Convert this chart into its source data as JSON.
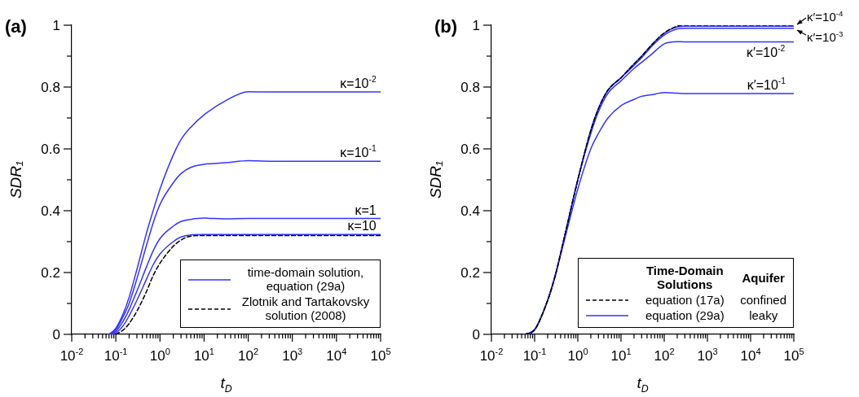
{
  "chart_data": [
    {
      "type": "line",
      "title": "(a)",
      "xlabel": "t$_{D}$",
      "ylabel": "SDR₁",
      "log": "x",
      "legend": "bottom right",
      "xlim": [
        0.01,
        100000
      ],
      "ylim": [
        0,
        1
      ],
      "xticks": [
        {
          "value": 0.01,
          "label": "10$^{-2}$"
        },
        {
          "value": 0.02,
          "label": null
        },
        {
          "value": 0.03,
          "label": null
        },
        {
          "value": 0.04,
          "label": null
        },
        {
          "value": 0.05,
          "label": null
        },
        {
          "value": 0.06,
          "label": null
        },
        {
          "value": 0.07,
          "label": null
        },
        {
          "value": 0.08,
          "label": null
        },
        {
          "value": 0.09,
          "label": null
        },
        {
          "value": 0.1,
          "label": "10$^{-1}$"
        },
        {
          "value": 0.2,
          "label": null
        },
        {
          "value": 0.3,
          "label": null
        },
        {
          "value": 0.4,
          "label": null
        },
        {
          "value": 0.5,
          "label": null
        },
        {
          "value": 0.6,
          "label": null
        },
        {
          "value": 0.7,
          "label": null
        },
        {
          "value": 0.8,
          "label": null
        },
        {
          "value": 0.9,
          "label": null
        },
        {
          "value": 1,
          "label": "10$^{0}$"
        },
        {
          "value": 2,
          "label": null
        },
        {
          "value": 3,
          "label": null
        },
        {
          "value": 4,
          "label": null
        },
        {
          "value": 5,
          "label": null
        },
        {
          "value": 6,
          "label": null
        },
        {
          "value": 7,
          "label": null
        },
        {
          "value": 8,
          "label": null
        },
        {
          "value": 9,
          "label": null
        },
        {
          "value": 10,
          "label": "10$^{1}$"
        },
        {
          "value": 20,
          "label": null
        },
        {
          "value": 30,
          "label": null
        },
        {
          "value": 40,
          "label": null
        },
        {
          "value": 50,
          "label": null
        },
        {
          "value": 60,
          "label": null
        },
        {
          "value": 70,
          "label": null
        },
        {
          "value": 80,
          "label": null
        },
        {
          "value": 90,
          "label": null
        },
        {
          "value": 100,
          "label": "10$^{2}$"
        },
        {
          "value": 200,
          "label": null
        },
        {
          "value": 300,
          "label": null
        },
        {
          "value": 400,
          "label": null
        },
        {
          "value": 500,
          "label": null
        },
        {
          "value": 600,
          "label": null
        },
        {
          "value": 700,
          "label": null
        },
        {
          "value": 800,
          "label": null
        },
        {
          "value": 900,
          "label": null
        },
        {
          "value": 1000,
          "label": "10$^{3}$"
        },
        {
          "value": 2000,
          "label": null
        },
        {
          "value": 3000,
          "label": null
        },
        {
          "value": 4000,
          "label": null
        },
        {
          "value": 5000,
          "label": null
        },
        {
          "value": 6000,
          "label": null
        },
        {
          "value": 7000,
          "label": null
        },
        {
          "value": 8000,
          "label": null
        },
        {
          "value": 9000,
          "label": null
        },
        {
          "value": 10000,
          "label": "10$^{4}$"
        },
        {
          "value": 20000,
          "label": null
        },
        {
          "value": 30000,
          "label": null
        },
        {
          "value": 40000,
          "label": null
        },
        {
          "value": 50000,
          "label": null
        },
        {
          "value": 60000,
          "label": null
        },
        {
          "value": 70000,
          "label": null
        },
        {
          "value": 80000,
          "label": null
        },
        {
          "value": 90000,
          "label": null
        },
        {
          "value": 100000,
          "label": "10$^{5}$"
        }
      ],
      "yticks": [
        0,
        {
          "value": 0.1,
          "label": null
        },
        0.2,
        {
          "value": 0.3,
          "label": null
        },
        0.4,
        {
          "value": 0.5,
          "label": null
        },
        0.6,
        {
          "value": 0.7,
          "label": null
        },
        0.8,
        {
          "value": 0.9,
          "label": null
        },
        1
      ],
      "series": [
        {
          "name": "time-domain solution, equation (29a)",
          "color": "#3333ff",
          "x": [
            0.07,
            0.1,
            0.15,
            0.2,
            0.3,
            0.5,
            0.7,
            1,
            2,
            3,
            5,
            10,
            30,
            100,
            300,
            100000
          ],
          "values": [
            0,
            0.02,
            0.07,
            0.12,
            0.21,
            0.33,
            0.4,
            0.47,
            0.58,
            0.63,
            0.67,
            0.71,
            0.755,
            0.785,
            0.784,
            0.784
          ]
        },
        {
          "color": "#3333ff",
          "x": [
            0.07,
            0.1,
            0.15,
            0.2,
            0.3,
            0.5,
            0.7,
            1,
            2,
            3,
            5,
            10,
            30,
            100,
            300,
            100000
          ],
          "values": [
            0,
            0.015,
            0.06,
            0.1,
            0.18,
            0.29,
            0.36,
            0.42,
            0.49,
            0.52,
            0.54,
            0.55,
            0.555,
            0.562,
            0.56,
            0.56
          ]
        },
        {
          "color": "#3333ff",
          "x": [
            0.07,
            0.1,
            0.15,
            0.2,
            0.3,
            0.5,
            0.7,
            1,
            2,
            3,
            5,
            10,
            30,
            100,
            300,
            100000
          ],
          "values": [
            0,
            0.01,
            0.045,
            0.08,
            0.14,
            0.22,
            0.27,
            0.31,
            0.35,
            0.365,
            0.372,
            0.376,
            0.374,
            0.375,
            0.375,
            0.375
          ]
        },
        {
          "color": "#3333ff",
          "x": [
            0.07,
            0.1,
            0.15,
            0.2,
            0.3,
            0.5,
            0.7,
            1,
            2,
            3,
            5,
            10,
            30,
            100,
            300,
            100000
          ],
          "values": [
            0,
            0.005,
            0.03,
            0.06,
            0.11,
            0.18,
            0.225,
            0.26,
            0.3,
            0.315,
            0.322,
            0.323,
            0.323,
            0.323,
            0.323,
            0.323
          ]
        },
        {
          "name": "Zlotnik and Tartakovsky solution (2008)",
          "color": "#000000",
          "line_style": "dashed",
          "x": [
            0.1,
            0.15,
            0.2,
            0.3,
            0.5,
            0.7,
            1,
            2,
            3,
            5,
            10,
            30,
            100,
            300,
            100000
          ],
          "values": [
            0,
            0.015,
            0.035,
            0.075,
            0.14,
            0.19,
            0.23,
            0.285,
            0.305,
            0.318,
            0.32,
            0.32,
            0.32,
            0.32,
            0.32
          ]
        }
      ],
      "annotations": [
        {
          "text": "κ=10$^{-2}$",
          "x": 80000,
          "y": 0.784
        },
        {
          "text": "κ=10$^{-1}$",
          "x": 80000,
          "y": 0.56
        },
        {
          "text": "κ=1",
          "x": 80000,
          "y": 0.375
        },
        {
          "text": "κ=10",
          "x": 80000,
          "y": 0.323
        }
      ]
    },
    {
      "type": "line",
      "title": "(b)",
      "xlabel": "t$_{D}$",
      "ylabel": "SDR₁",
      "log": "x",
      "legend": "bottom right",
      "legend_title": "Time-Domain Solutions",
      "xlim": [
        0.01,
        100000
      ],
      "ylim": [
        0,
        1
      ],
      "xticks": [
        {
          "value": 0.01,
          "label": "10$^{-2}$"
        },
        {
          "value": 0.02,
          "label": null
        },
        {
          "value": 0.03,
          "label": null
        },
        {
          "value": 0.04,
          "label": null
        },
        {
          "value": 0.05,
          "label": null
        },
        {
          "value": 0.06,
          "label": null
        },
        {
          "value": 0.07,
          "label": null
        },
        {
          "value": 0.08,
          "label": null
        },
        {
          "value": 0.09,
          "label": null
        },
        {
          "value": 0.1,
          "label": "10$^{-1}$"
        },
        {
          "value": 0.2,
          "label": null
        },
        {
          "value": 0.3,
          "label": null
        },
        {
          "value": 0.4,
          "label": null
        },
        {
          "value": 0.5,
          "label": null
        },
        {
          "value": 0.6,
          "label": null
        },
        {
          "value": 0.7,
          "label": null
        },
        {
          "value": 0.8,
          "label": null
        },
        {
          "value": 0.9,
          "label": null
        },
        {
          "value": 1,
          "label": "10$^{0}$"
        },
        {
          "value": 2,
          "label": null
        },
        {
          "value": 3,
          "label": null
        },
        {
          "value": 4,
          "label": null
        },
        {
          "value": 5,
          "label": null
        },
        {
          "value": 6,
          "label": null
        },
        {
          "value": 7,
          "label": null
        },
        {
          "value": 8,
          "label": null
        },
        {
          "value": 9,
          "label": null
        },
        {
          "value": 10,
          "label": "10$^{1}$"
        },
        {
          "value": 20,
          "label": null
        },
        {
          "value": 30,
          "label": null
        },
        {
          "value": 40,
          "label": null
        },
        {
          "value": 50,
          "label": null
        },
        {
          "value": 60,
          "label": null
        },
        {
          "value": 70,
          "label": null
        },
        {
          "value": 80,
          "label": null
        },
        {
          "value": 90,
          "label": null
        },
        {
          "value": 100,
          "label": "10$^{2}$"
        },
        {
          "value": 200,
          "label": null
        },
        {
          "value": 300,
          "label": null
        },
        {
          "value": 400,
          "label": null
        },
        {
          "value": 500,
          "label": null
        },
        {
          "value": 600,
          "label": null
        },
        {
          "value": 700,
          "label": null
        },
        {
          "value": 800,
          "label": null
        },
        {
          "value": 900,
          "label": null
        },
        {
          "value": 1000,
          "label": "10$^{3}$"
        },
        {
          "value": 2000,
          "label": null
        },
        {
          "value": 3000,
          "label": null
        },
        {
          "value": 4000,
          "label": null
        },
        {
          "value": 5000,
          "label": null
        },
        {
          "value": 6000,
          "label": null
        },
        {
          "value": 7000,
          "label": null
        },
        {
          "value": 8000,
          "label": null
        },
        {
          "value": 9000,
          "label": null
        },
        {
          "value": 10000,
          "label": "10$^{4}$"
        },
        {
          "value": 20000,
          "label": null
        },
        {
          "value": 30000,
          "label": null
        },
        {
          "value": 40000,
          "label": null
        },
        {
          "value": 50000,
          "label": null
        },
        {
          "value": 60000,
          "label": null
        },
        {
          "value": 70000,
          "label": null
        },
        {
          "value": 80000,
          "label": null
        },
        {
          "value": 90000,
          "label": null
        },
        {
          "value": 100000,
          "label": "10$^{5}$"
        }
      ],
      "yticks": [
        0,
        {
          "value": 0.1,
          "label": null
        },
        0.2,
        {
          "value": 0.3,
          "label": null
        },
        0.4,
        {
          "value": 0.5,
          "label": null
        },
        0.6,
        {
          "value": 0.7,
          "label": null
        },
        0.8,
        {
          "value": 0.9,
          "label": null
        },
        1
      ],
      "series": [
        {
          "name": "equation (17a)",
          "color": "#000000",
          "line_style": "dashed",
          "x": [
            0.06,
            0.1,
            0.2,
            0.3,
            0.5,
            1,
            2,
            3,
            5,
            10,
            20,
            30,
            50,
            100,
            200,
            300,
            100000
          ],
          "values": [
            0,
            0.015,
            0.11,
            0.19,
            0.32,
            0.5,
            0.66,
            0.73,
            0.79,
            0.83,
            0.875,
            0.9,
            0.935,
            0.975,
            0.997,
            1,
            1
          ]
        },
        {
          "name": "equation (29a)",
          "color": "#3333ff",
          "x": [
            0.06,
            0.1,
            0.2,
            0.3,
            0.5,
            1,
            2,
            3,
            5,
            10,
            20,
            30,
            50,
            100,
            200,
            300,
            100000
          ],
          "values": [
            0,
            0.015,
            0.11,
            0.19,
            0.32,
            0.5,
            0.66,
            0.73,
            0.79,
            0.83,
            0.875,
            0.9,
            0.935,
            0.974,
            0.995,
            0.997,
            0.997
          ]
        },
        {
          "color": "#3333ff",
          "x": [
            0.06,
            0.1,
            0.2,
            0.3,
            0.5,
            1,
            2,
            3,
            5,
            10,
            20,
            30,
            50,
            100,
            200,
            300,
            100000
          ],
          "values": [
            0,
            0.015,
            0.11,
            0.19,
            0.32,
            0.5,
            0.66,
            0.73,
            0.79,
            0.83,
            0.87,
            0.895,
            0.93,
            0.968,
            0.988,
            0.99,
            0.99
          ]
        },
        {
          "color": "#3333ff",
          "x": [
            0.06,
            0.1,
            0.2,
            0.3,
            0.5,
            1,
            2,
            3,
            5,
            10,
            20,
            30,
            50,
            100,
            200,
            300,
            100000
          ],
          "values": [
            0,
            0.015,
            0.11,
            0.19,
            0.32,
            0.5,
            0.65,
            0.72,
            0.78,
            0.82,
            0.86,
            0.88,
            0.905,
            0.94,
            0.947,
            0.946,
            0.946
          ]
        },
        {
          "color": "#3333ff",
          "x": [
            0.06,
            0.1,
            0.2,
            0.3,
            0.5,
            1,
            2,
            3,
            5,
            10,
            20,
            30,
            50,
            100,
            200,
            300,
            100000
          ],
          "values": [
            0,
            0.015,
            0.11,
            0.19,
            0.31,
            0.47,
            0.6,
            0.65,
            0.7,
            0.74,
            0.76,
            0.77,
            0.775,
            0.782,
            0.78,
            0.779,
            0.779
          ]
        }
      ],
      "annotations": [
        "Aquifer",
        "confined",
        "leaky",
        {
          "text": "κ′=10$^{-4}$",
          "x": 100000,
          "y": 0.997
        },
        {
          "text": "κ′=10$^{-3}$",
          "x": 100000,
          "y": 0.99
        },
        {
          "text": "κ′=10$^{-2}$",
          "x": 63000,
          "y": 0.946
        },
        {
          "text": "κ′=10$^{-1}$",
          "x": 65000,
          "y": 0.779
        }
      ]
    }
  ]
}
